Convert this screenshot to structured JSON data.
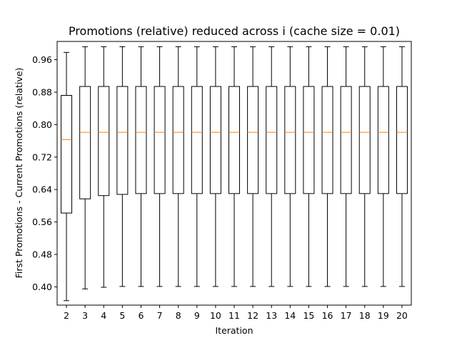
{
  "chart_data": {
    "type": "box",
    "title": "Promotions (relative) reduced across i (cache size = 0.01)",
    "xlabel": "Iteration",
    "ylabel": "First Promotions - Current Promotions (relative)",
    "ylim": [
      0.355,
      1.005
    ],
    "yticks": [
      0.4,
      0.48,
      0.56,
      0.64,
      0.72,
      0.8,
      0.88,
      0.96
    ],
    "ytick_labels": [
      "0.40",
      "0.48",
      "0.56",
      "0.64",
      "0.72",
      "0.80",
      "0.88",
      "0.96"
    ],
    "categories": [
      "2",
      "3",
      "4",
      "5",
      "6",
      "7",
      "8",
      "9",
      "10",
      "11",
      "12",
      "13",
      "14",
      "15",
      "16",
      "17",
      "18",
      "19",
      "20"
    ],
    "boxes": [
      {
        "whisker_low": 0.366,
        "q1": 0.582,
        "median": 0.763,
        "q3": 0.872,
        "whisker_high": 0.978
      },
      {
        "whisker_low": 0.395,
        "q1": 0.617,
        "median": 0.781,
        "q3": 0.894,
        "whisker_high": 0.992
      },
      {
        "whisker_low": 0.399,
        "q1": 0.625,
        "median": 0.781,
        "q3": 0.894,
        "whisker_high": 0.992
      },
      {
        "whisker_low": 0.401,
        "q1": 0.628,
        "median": 0.781,
        "q3": 0.894,
        "whisker_high": 0.992
      },
      {
        "whisker_low": 0.401,
        "q1": 0.63,
        "median": 0.781,
        "q3": 0.894,
        "whisker_high": 0.992
      },
      {
        "whisker_low": 0.401,
        "q1": 0.63,
        "median": 0.781,
        "q3": 0.894,
        "whisker_high": 0.992
      },
      {
        "whisker_low": 0.401,
        "q1": 0.63,
        "median": 0.781,
        "q3": 0.894,
        "whisker_high": 0.992
      },
      {
        "whisker_low": 0.401,
        "q1": 0.63,
        "median": 0.781,
        "q3": 0.894,
        "whisker_high": 0.992
      },
      {
        "whisker_low": 0.401,
        "q1": 0.63,
        "median": 0.781,
        "q3": 0.894,
        "whisker_high": 0.992
      },
      {
        "whisker_low": 0.401,
        "q1": 0.63,
        "median": 0.781,
        "q3": 0.894,
        "whisker_high": 0.992
      },
      {
        "whisker_low": 0.401,
        "q1": 0.63,
        "median": 0.781,
        "q3": 0.894,
        "whisker_high": 0.992
      },
      {
        "whisker_low": 0.401,
        "q1": 0.63,
        "median": 0.781,
        "q3": 0.894,
        "whisker_high": 0.992
      },
      {
        "whisker_low": 0.401,
        "q1": 0.63,
        "median": 0.781,
        "q3": 0.894,
        "whisker_high": 0.992
      },
      {
        "whisker_low": 0.401,
        "q1": 0.63,
        "median": 0.781,
        "q3": 0.894,
        "whisker_high": 0.992
      },
      {
        "whisker_low": 0.401,
        "q1": 0.63,
        "median": 0.781,
        "q3": 0.894,
        "whisker_high": 0.992
      },
      {
        "whisker_low": 0.401,
        "q1": 0.63,
        "median": 0.781,
        "q3": 0.894,
        "whisker_high": 0.992
      },
      {
        "whisker_low": 0.401,
        "q1": 0.63,
        "median": 0.781,
        "q3": 0.894,
        "whisker_high": 0.992
      },
      {
        "whisker_low": 0.401,
        "q1": 0.63,
        "median": 0.781,
        "q3": 0.894,
        "whisker_high": 0.992
      },
      {
        "whisker_low": 0.401,
        "q1": 0.63,
        "median": 0.781,
        "q3": 0.894,
        "whisker_high": 0.992
      }
    ],
    "grid": false,
    "legend": "none",
    "box_color": "#000000",
    "median_color": "#ff7f0e"
  }
}
